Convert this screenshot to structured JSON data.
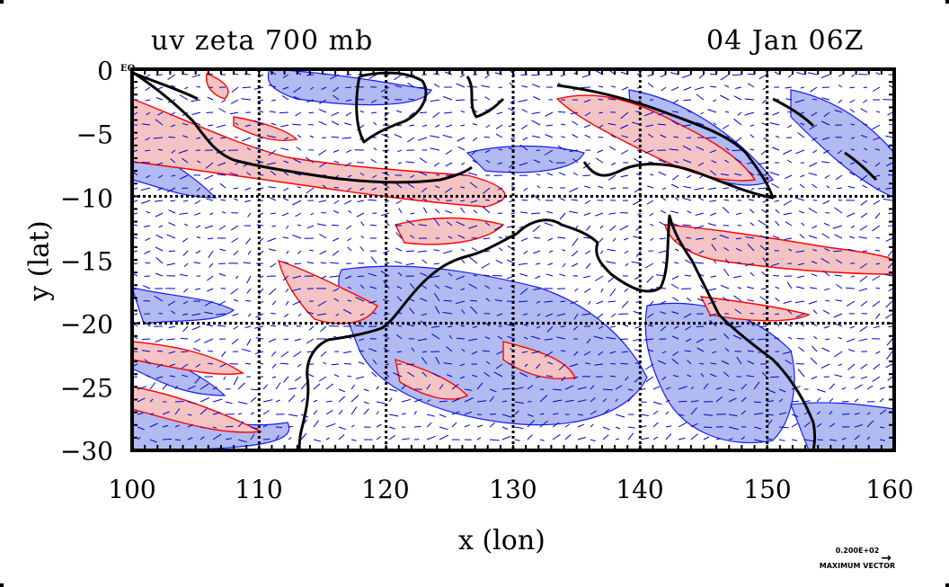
{
  "title": {
    "left": "uv zeta 700 mb",
    "right": "04 Jan 06Z"
  },
  "axes": {
    "x_label": "x (lon)",
    "y_label": "y (lat)",
    "x_ticks": [
      "100",
      "110",
      "120",
      "130",
      "140",
      "150",
      "160"
    ],
    "y_ticks": [
      "0",
      "−5",
      "−10",
      "−15",
      "−20",
      "−25",
      "−30"
    ],
    "eq_label": "EQ"
  },
  "legend": {
    "value": "0.200E+02",
    "caption": "MAXIMUM VECTOR"
  },
  "colors": {
    "positive_fill": "#f4c4c4",
    "positive_line": "#ff0000",
    "negative_fill": "#a9b4f0",
    "negative_line": "#0000ff",
    "vector": "#0000cc",
    "coast": "#000000",
    "grid": "#000000"
  },
  "map": {
    "lon_range": [
      100,
      160
    ],
    "lat_range": [
      -30,
      0
    ],
    "gridlines_lon": [
      110,
      120,
      130,
      140,
      150
    ],
    "gridlines_lat": [
      -10,
      -20
    ]
  }
}
